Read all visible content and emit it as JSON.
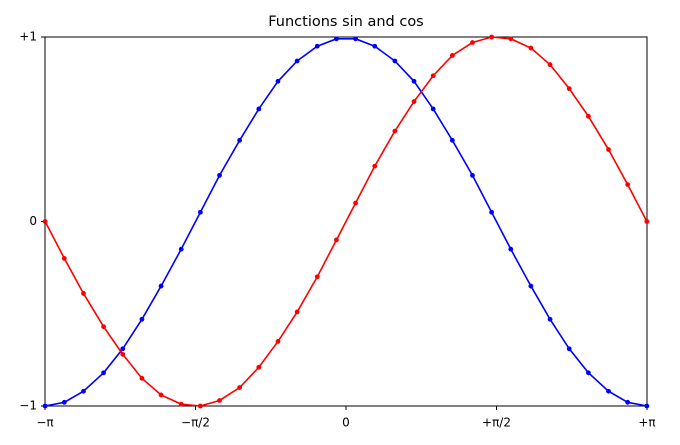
{
  "chart_data": {
    "type": "line",
    "title": "Functions sin and cos",
    "x": [
      -3.14,
      -2.94,
      -2.74,
      -2.53,
      -2.33,
      -2.13,
      -1.93,
      -1.72,
      -1.52,
      -1.32,
      -1.11,
      -0.91,
      -0.71,
      -0.51,
      -0.3,
      -0.1,
      0.1,
      0.3,
      0.51,
      0.71,
      0.91,
      1.11,
      1.32,
      1.52,
      1.72,
      1.93,
      2.13,
      2.33,
      2.53,
      2.74,
      2.94,
      3.14
    ],
    "series": [
      {
        "color": "#0000ff",
        "values": [
          -1,
          -0.98,
          -0.92,
          -0.82,
          -0.69,
          -0.53,
          -0.35,
          -0.15,
          0.05,
          0.25,
          0.44,
          0.61,
          0.76,
          0.87,
          0.95,
          0.99,
          0.99,
          0.95,
          0.87,
          0.76,
          0.61,
          0.44,
          0.25,
          0.05,
          -0.15,
          -0.35,
          -0.53,
          -0.69,
          -0.82,
          -0.92,
          -0.98,
          -1
        ]
      },
      {
        "color": "#ff0000",
        "values": [
          0,
          -0.2,
          -0.39,
          -0.57,
          -0.72,
          -0.85,
          -0.94,
          -0.99,
          -1.0,
          -0.97,
          -0.9,
          -0.79,
          -0.65,
          -0.49,
          -0.3,
          -0.1,
          0.1,
          0.3,
          0.49,
          0.65,
          0.79,
          0.9,
          0.97,
          1.0,
          0.99,
          0.94,
          0.85,
          0.72,
          0.57,
          0.39,
          0.2,
          0
        ]
      }
    ],
    "xlim": [
      -3.1416,
      3.1416
    ],
    "xticks": [
      {
        "value": -3.1416,
        "label": "−π"
      },
      {
        "value": -1.5708,
        "label": "−π/2"
      },
      0,
      {
        "value": 1.5708,
        "label": "+π/2"
      },
      {
        "value": 3.1416,
        "label": "+π"
      }
    ],
    "ylim": [
      -1,
      1
    ],
    "yticks": [
      {
        "value": -1,
        "label": "−1"
      },
      0,
      {
        "value": 1,
        "label": "+1"
      }
    ],
    "grid": false
  }
}
